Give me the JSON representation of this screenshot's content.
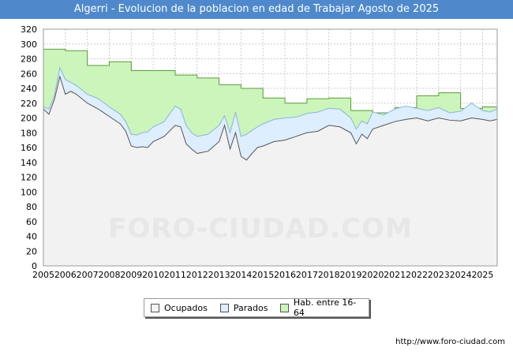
{
  "colors": {
    "header_bg": "#4f89cc",
    "ocupados_fill": "#f2f2f2",
    "ocupados_line": "#555555",
    "parados_fill": "#ddeeff",
    "parados_line": "#8ab4e0",
    "hab_fill": "#ccf5bb",
    "hab_line": "#5a9a3a"
  },
  "chart_data": {
    "type": "area",
    "title": "Algerri - Evolucion de la poblacion en edad de Trabajar Agosto de 2025",
    "xlabel": "",
    "ylabel": "",
    "ylim": [
      0,
      320
    ],
    "yticks": [
      0,
      20,
      40,
      60,
      80,
      100,
      120,
      140,
      160,
      180,
      200,
      220,
      240,
      260,
      280,
      300,
      320
    ],
    "xlim": [
      2005,
      2025.6667
    ],
    "xticks": [
      "2005",
      "2006",
      "2007",
      "2008",
      "2009",
      "2010",
      "2011",
      "2012",
      "2013",
      "2014",
      "2015",
      "2016",
      "2017",
      "2018",
      "2019",
      "2020",
      "2021",
      "2022",
      "2023",
      "2024",
      "2025"
    ],
    "grid": true,
    "legend": [
      "Ocupados",
      "Parados",
      "Hab. entre 16-64"
    ],
    "legend_position": "bottom-center",
    "source": "http://www.foro-ciudad.com",
    "watermark": "FORO-CIUDAD.COM",
    "hab_16_64": {
      "years": [
        2005,
        2006,
        2007,
        2008,
        2009,
        2010,
        2011,
        2012,
        2013,
        2014,
        2015,
        2016,
        2017,
        2018,
        2019,
        2020,
        2021,
        2022,
        2023,
        2024,
        2025
      ],
      "values": [
        293,
        291,
        271,
        276,
        264,
        264,
        258,
        254,
        245,
        240,
        227,
        220,
        226,
        227,
        210,
        207,
        214,
        230,
        234,
        213,
        215
      ]
    },
    "parados": {
      "x": [
        2005,
        2005.25,
        2005.5,
        2005.75,
        2006,
        2006.25,
        2006.5,
        2006.75,
        2007,
        2007.5,
        2008,
        2008.5,
        2008.75,
        2009,
        2009.25,
        2009.5,
        2009.75,
        2010,
        2010.5,
        2011,
        2011.25,
        2011.5,
        2011.75,
        2012,
        2012.5,
        2013,
        2013.25,
        2013.5,
        2013.75,
        2014,
        2014.25,
        2014.5,
        2014.75,
        2015,
        2015.5,
        2016,
        2016.5,
        2017,
        2017.5,
        2018,
        2018.5,
        2019,
        2019.25,
        2019.5,
        2019.75,
        2020,
        2020.5,
        2021,
        2021.5,
        2022,
        2022.5,
        2023,
        2023.5,
        2024,
        2024.5,
        2025,
        2025.3333,
        2025.6667
      ],
      "values": [
        215,
        212,
        230,
        268,
        252,
        248,
        244,
        238,
        232,
        226,
        215,
        205,
        195,
        178,
        177,
        180,
        181,
        188,
        195,
        216,
        212,
        190,
        180,
        175,
        178,
        190,
        203,
        180,
        208,
        175,
        178,
        183,
        188,
        192,
        198,
        200,
        201,
        206,
        208,
        213,
        212,
        200,
        185,
        196,
        192,
        208,
        204,
        212,
        216,
        213,
        210,
        214,
        207,
        209,
        220,
        210,
        208,
        212
      ]
    },
    "ocupados": {
      "x": [
        2005,
        2005.25,
        2005.5,
        2005.75,
        2006,
        2006.25,
        2006.5,
        2006.75,
        2007,
        2007.5,
        2008,
        2008.5,
        2008.75,
        2009,
        2009.25,
        2009.5,
        2009.75,
        2010,
        2010.5,
        2011,
        2011.25,
        2011.5,
        2011.75,
        2012,
        2012.5,
        2013,
        2013.25,
        2013.5,
        2013.75,
        2014,
        2014.25,
        2014.5,
        2014.75,
        2015,
        2015.5,
        2016,
        2016.5,
        2017,
        2017.5,
        2018,
        2018.5,
        2019,
        2019.25,
        2019.5,
        2019.75,
        2020,
        2020.5,
        2021,
        2021.5,
        2022,
        2022.5,
        2023,
        2023.5,
        2024,
        2024.5,
        2025,
        2025.3333,
        2025.6667
      ],
      "values": [
        212,
        205,
        225,
        256,
        232,
        236,
        232,
        226,
        220,
        212,
        202,
        192,
        182,
        162,
        160,
        161,
        160,
        168,
        175,
        190,
        188,
        165,
        158,
        152,
        155,
        168,
        190,
        158,
        180,
        148,
        143,
        152,
        160,
        162,
        168,
        170,
        175,
        180,
        182,
        190,
        188,
        180,
        165,
        178,
        172,
        185,
        190,
        195,
        198,
        200,
        196,
        200,
        197,
        196,
        200,
        198,
        196,
        198
      ]
    }
  }
}
